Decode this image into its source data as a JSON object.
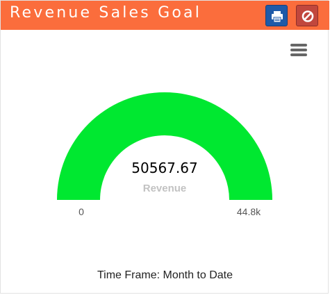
{
  "widget": {
    "title": "Revenue Sales Goal",
    "header_color": "#fb6d3c",
    "print_icon": "print-icon",
    "disable_icon": "ban-icon",
    "menu_icon": "hamburger-menu-icon"
  },
  "gauge": {
    "value": 50567.67,
    "value_display": "50567.67",
    "label": "Revenue",
    "min_label": "0",
    "max_label": "44.8k",
    "min": 0,
    "max": 44800,
    "fill_fraction": 1.0,
    "fill_color": "#00e830"
  },
  "footer": {
    "time_frame": "Time Frame: Month to Date"
  }
}
